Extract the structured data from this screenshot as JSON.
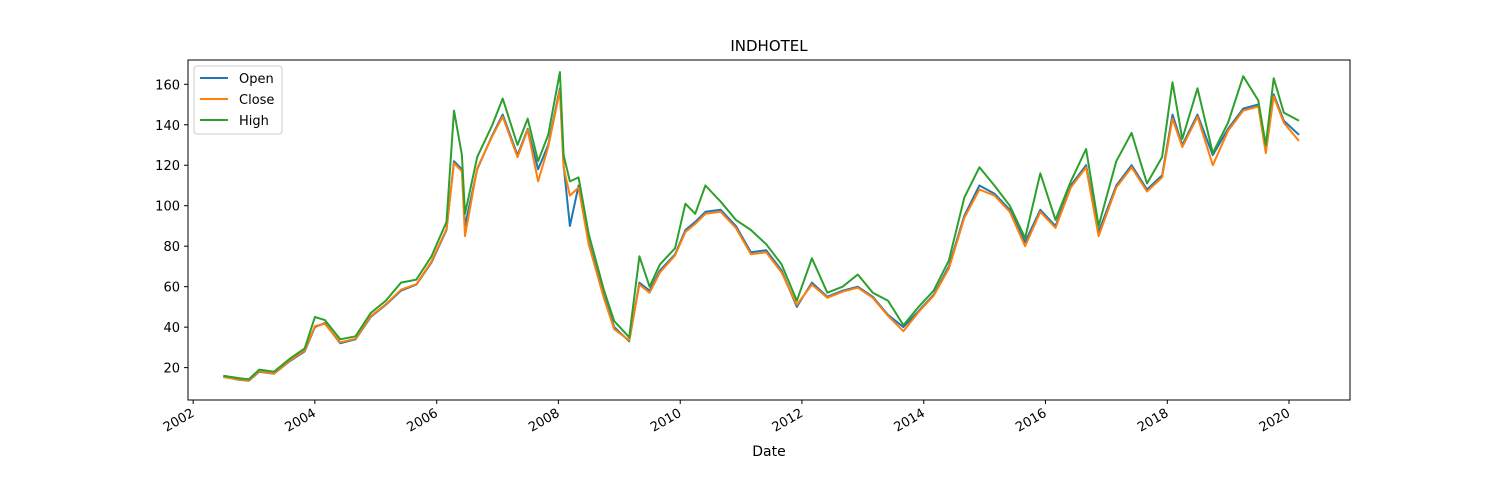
{
  "chart_data": {
    "type": "line",
    "title": "INDHOTEL",
    "xlabel": "Date",
    "ylabel": "",
    "x_type": "date",
    "xlim": [
      "2001-12-01",
      "2021-01-01"
    ],
    "ylim": [
      4,
      172
    ],
    "x_ticks": [
      "2002",
      "2004",
      "2006",
      "2008",
      "2010",
      "2012",
      "2014",
      "2016",
      "2018",
      "2020"
    ],
    "y_ticks": [
      20,
      40,
      60,
      80,
      100,
      120,
      140,
      160
    ],
    "grid": false,
    "legend_position": "upper-left",
    "colors": {
      "Open": "#1f77b4",
      "Close": "#ff7f0e",
      "High": "#2ca02c"
    },
    "series": [
      {
        "name": "Open",
        "points": [
          [
            "2002-07-01",
            15.5
          ],
          [
            "2002-10-01",
            14.0
          ],
          [
            "2002-12-01",
            13.5
          ],
          [
            "2003-02-01",
            18.0
          ],
          [
            "2003-05-01",
            17.0
          ],
          [
            "2003-08-01",
            23.0
          ],
          [
            "2003-11-01",
            28.0
          ],
          [
            "2004-01-01",
            40.0
          ],
          [
            "2004-03-01",
            42.0
          ],
          [
            "2004-06-01",
            32.0
          ],
          [
            "2004-09-01",
            34.0
          ],
          [
            "2004-12-01",
            45.0
          ],
          [
            "2005-03-01",
            51.0
          ],
          [
            "2005-06-01",
            58.0
          ],
          [
            "2005-09-01",
            61.0
          ],
          [
            "2005-12-01",
            72.0
          ],
          [
            "2006-03-01",
            88.0
          ],
          [
            "2006-04-15",
            122.0
          ],
          [
            "2006-06-01",
            118.0
          ],
          [
            "2006-06-20",
            90.0
          ],
          [
            "2006-09-01",
            118.0
          ],
          [
            "2006-12-01",
            135.0
          ],
          [
            "2007-02-01",
            145.0
          ],
          [
            "2007-05-01",
            125.0
          ],
          [
            "2007-07-01",
            138.0
          ],
          [
            "2007-09-01",
            118.0
          ],
          [
            "2007-11-01",
            130.0
          ],
          [
            "2008-01-10",
            158.0
          ],
          [
            "2008-02-01",
            120.0
          ],
          [
            "2008-03-10",
            90.0
          ],
          [
            "2008-05-01",
            110.0
          ],
          [
            "2008-07-01",
            82.0
          ],
          [
            "2008-10-01",
            55.0
          ],
          [
            "2008-12-01",
            40.0
          ],
          [
            "2009-03-01",
            33.0
          ],
          [
            "2009-05-01",
            62.0
          ],
          [
            "2009-07-01",
            58.0
          ],
          [
            "2009-09-01",
            68.0
          ],
          [
            "2009-12-01",
            76.0
          ],
          [
            "2010-02-01",
            88.0
          ],
          [
            "2010-04-01",
            92.0
          ],
          [
            "2010-06-01",
            97.0
          ],
          [
            "2010-09-01",
            98.0
          ],
          [
            "2010-12-01",
            90.0
          ],
          [
            "2011-03-01",
            77.0
          ],
          [
            "2011-06-01",
            78.0
          ],
          [
            "2011-09-01",
            68.0
          ],
          [
            "2011-12-01",
            50.0
          ],
          [
            "2012-03-01",
            62.0
          ],
          [
            "2012-06-01",
            55.0
          ],
          [
            "2012-09-01",
            58.0
          ],
          [
            "2012-12-01",
            60.0
          ],
          [
            "2013-03-01",
            55.0
          ],
          [
            "2013-06-01",
            46.0
          ],
          [
            "2013-09-01",
            40.0
          ],
          [
            "2013-12-01",
            48.0
          ],
          [
            "2014-03-01",
            56.0
          ],
          [
            "2014-06-01",
            70.0
          ],
          [
            "2014-09-01",
            95.0
          ],
          [
            "2014-12-01",
            110.0
          ],
          [
            "2015-03-01",
            106.0
          ],
          [
            "2015-06-01",
            98.0
          ],
          [
            "2015-09-01",
            82.0
          ],
          [
            "2015-12-01",
            98.0
          ],
          [
            "2016-03-01",
            90.0
          ],
          [
            "2016-06-01",
            110.0
          ],
          [
            "2016-09-01",
            120.0
          ],
          [
            "2016-11-15",
            87.0
          ],
          [
            "2017-03-01",
            110.0
          ],
          [
            "2017-06-01",
            120.0
          ],
          [
            "2017-09-01",
            108.0
          ],
          [
            "2017-12-01",
            115.0
          ],
          [
            "2018-02-01",
            145.0
          ],
          [
            "2018-04-01",
            130.0
          ],
          [
            "2018-07-01",
            145.0
          ],
          [
            "2018-10-01",
            125.0
          ],
          [
            "2019-01-01",
            138.0
          ],
          [
            "2019-04-01",
            148.0
          ],
          [
            "2019-07-01",
            150.0
          ],
          [
            "2019-08-15",
            128.0
          ],
          [
            "2019-10-01",
            155.0
          ],
          [
            "2019-12-01",
            142.0
          ],
          [
            "2020-03-01",
            135.0
          ]
        ]
      },
      {
        "name": "Close",
        "points": [
          [
            "2002-07-01",
            15.3
          ],
          [
            "2002-10-01",
            14.2
          ],
          [
            "2002-12-01",
            13.6
          ],
          [
            "2003-02-01",
            18.2
          ],
          [
            "2003-05-01",
            17.1
          ],
          [
            "2003-08-01",
            23.3
          ],
          [
            "2003-11-01",
            28.4
          ],
          [
            "2004-01-01",
            40.5
          ],
          [
            "2004-03-01",
            41.6
          ],
          [
            "2004-06-01",
            32.5
          ],
          [
            "2004-09-01",
            34.3
          ],
          [
            "2004-12-01",
            45.4
          ],
          [
            "2005-03-01",
            51.3
          ],
          [
            "2005-06-01",
            58.5
          ],
          [
            "2005-09-01",
            61.2
          ],
          [
            "2005-12-01",
            72.5
          ],
          [
            "2006-03-01",
            88.5
          ],
          [
            "2006-04-15",
            121.0
          ],
          [
            "2006-06-01",
            117.0
          ],
          [
            "2006-06-20",
            85.0
          ],
          [
            "2006-09-01",
            118.5
          ],
          [
            "2006-12-01",
            134.5
          ],
          [
            "2007-02-01",
            144.0
          ],
          [
            "2007-05-01",
            124.0
          ],
          [
            "2007-07-01",
            137.5
          ],
          [
            "2007-09-01",
            112.0
          ],
          [
            "2007-11-01",
            129.0
          ],
          [
            "2008-01-10",
            157.0
          ],
          [
            "2008-02-01",
            119.0
          ],
          [
            "2008-03-10",
            105.0
          ],
          [
            "2008-05-01",
            109.0
          ],
          [
            "2008-07-01",
            81.0
          ],
          [
            "2008-10-01",
            54.0
          ],
          [
            "2008-12-01",
            39.0
          ],
          [
            "2009-03-01",
            33.5
          ],
          [
            "2009-05-01",
            61.0
          ],
          [
            "2009-07-01",
            57.0
          ],
          [
            "2009-09-01",
            67.0
          ],
          [
            "2009-12-01",
            75.5
          ],
          [
            "2010-02-01",
            87.0
          ],
          [
            "2010-04-01",
            91.0
          ],
          [
            "2010-06-01",
            96.0
          ],
          [
            "2010-09-01",
            97.0
          ],
          [
            "2010-12-01",
            89.0
          ],
          [
            "2011-03-01",
            76.0
          ],
          [
            "2011-06-01",
            77.0
          ],
          [
            "2011-09-01",
            67.0
          ],
          [
            "2011-12-01",
            51.0
          ],
          [
            "2012-03-01",
            61.0
          ],
          [
            "2012-06-01",
            54.5
          ],
          [
            "2012-09-01",
            57.5
          ],
          [
            "2012-12-01",
            59.5
          ],
          [
            "2013-03-01",
            54.5
          ],
          [
            "2013-06-01",
            45.5
          ],
          [
            "2013-09-01",
            38.0
          ],
          [
            "2013-12-01",
            47.5
          ],
          [
            "2014-03-01",
            55.5
          ],
          [
            "2014-06-01",
            69.0
          ],
          [
            "2014-09-01",
            94.0
          ],
          [
            "2014-12-01",
            108.0
          ],
          [
            "2015-03-01",
            105.0
          ],
          [
            "2015-06-01",
            97.0
          ],
          [
            "2015-09-01",
            80.0
          ],
          [
            "2015-12-01",
            97.0
          ],
          [
            "2016-03-01",
            89.0
          ],
          [
            "2016-06-01",
            109.0
          ],
          [
            "2016-09-01",
            119.0
          ],
          [
            "2016-11-15",
            85.0
          ],
          [
            "2017-03-01",
            109.0
          ],
          [
            "2017-06-01",
            119.0
          ],
          [
            "2017-09-01",
            107.0
          ],
          [
            "2017-12-01",
            114.0
          ],
          [
            "2018-02-01",
            143.0
          ],
          [
            "2018-04-01",
            129.0
          ],
          [
            "2018-07-01",
            144.0
          ],
          [
            "2018-10-01",
            120.0
          ],
          [
            "2019-01-01",
            137.0
          ],
          [
            "2019-04-01",
            147.0
          ],
          [
            "2019-07-01",
            149.0
          ],
          [
            "2019-08-15",
            126.0
          ],
          [
            "2019-10-01",
            154.0
          ],
          [
            "2019-12-01",
            141.0
          ],
          [
            "2020-03-01",
            132.0
          ]
        ]
      },
      {
        "name": "High",
        "points": [
          [
            "2002-07-01",
            16.0
          ],
          [
            "2002-10-01",
            14.8
          ],
          [
            "2002-12-01",
            14.2
          ],
          [
            "2003-02-01",
            19.0
          ],
          [
            "2003-05-01",
            18.0
          ],
          [
            "2003-08-01",
            24.2
          ],
          [
            "2003-11-01",
            29.5
          ],
          [
            "2004-01-01",
            45.0
          ],
          [
            "2004-03-01",
            43.5
          ],
          [
            "2004-06-01",
            34.0
          ],
          [
            "2004-09-01",
            35.5
          ],
          [
            "2004-12-01",
            47.0
          ],
          [
            "2005-03-01",
            53.0
          ],
          [
            "2005-06-01",
            62.0
          ],
          [
            "2005-09-01",
            63.5
          ],
          [
            "2005-12-01",
            75.0
          ],
          [
            "2006-03-01",
            92.0
          ],
          [
            "2006-04-15",
            147.0
          ],
          [
            "2006-06-01",
            125.0
          ],
          [
            "2006-06-20",
            96.0
          ],
          [
            "2006-09-01",
            124.0
          ],
          [
            "2006-12-01",
            140.0
          ],
          [
            "2007-02-01",
            153.0
          ],
          [
            "2007-05-01",
            130.0
          ],
          [
            "2007-07-01",
            143.0
          ],
          [
            "2007-09-01",
            122.0
          ],
          [
            "2007-11-01",
            135.0
          ],
          [
            "2008-01-10",
            166.0
          ],
          [
            "2008-02-01",
            125.0
          ],
          [
            "2008-03-10",
            112.0
          ],
          [
            "2008-05-01",
            114.0
          ],
          [
            "2008-07-01",
            86.0
          ],
          [
            "2008-10-01",
            58.0
          ],
          [
            "2008-12-01",
            43.0
          ],
          [
            "2009-03-01",
            35.0
          ],
          [
            "2009-05-01",
            75.0
          ],
          [
            "2009-07-01",
            60.0
          ],
          [
            "2009-09-01",
            71.0
          ],
          [
            "2009-12-01",
            79.0
          ],
          [
            "2010-02-01",
            101.0
          ],
          [
            "2010-04-01",
            96.0
          ],
          [
            "2010-06-01",
            110.0
          ],
          [
            "2010-09-01",
            102.0
          ],
          [
            "2010-12-01",
            93.0
          ],
          [
            "2011-03-01",
            88.0
          ],
          [
            "2011-06-01",
            81.0
          ],
          [
            "2011-09-01",
            71.0
          ],
          [
            "2011-12-01",
            53.0
          ],
          [
            "2012-03-01",
            74.0
          ],
          [
            "2012-06-01",
            57.0
          ],
          [
            "2012-09-01",
            60.0
          ],
          [
            "2012-12-01",
            66.0
          ],
          [
            "2013-03-01",
            57.0
          ],
          [
            "2013-06-01",
            53.0
          ],
          [
            "2013-09-01",
            41.0
          ],
          [
            "2013-12-01",
            50.0
          ],
          [
            "2014-03-01",
            58.0
          ],
          [
            "2014-06-01",
            73.0
          ],
          [
            "2014-09-01",
            104.0
          ],
          [
            "2014-12-01",
            119.0
          ],
          [
            "2015-03-01",
            110.0
          ],
          [
            "2015-06-01",
            100.0
          ],
          [
            "2015-09-01",
            84.0
          ],
          [
            "2015-12-01",
            116.0
          ],
          [
            "2016-03-01",
            93.0
          ],
          [
            "2016-06-01",
            112.0
          ],
          [
            "2016-09-01",
            128.0
          ],
          [
            "2016-11-15",
            90.0
          ],
          [
            "2017-03-01",
            122.0
          ],
          [
            "2017-06-01",
            136.0
          ],
          [
            "2017-09-01",
            111.0
          ],
          [
            "2017-12-01",
            124.0
          ],
          [
            "2018-02-01",
            161.0
          ],
          [
            "2018-04-01",
            133.0
          ],
          [
            "2018-07-01",
            158.0
          ],
          [
            "2018-10-01",
            126.0
          ],
          [
            "2019-01-01",
            141.0
          ],
          [
            "2019-04-01",
            164.0
          ],
          [
            "2019-07-01",
            152.0
          ],
          [
            "2019-08-15",
            130.0
          ],
          [
            "2019-10-01",
            163.0
          ],
          [
            "2019-12-01",
            146.0
          ],
          [
            "2020-03-01",
            142.0
          ]
        ]
      }
    ]
  }
}
